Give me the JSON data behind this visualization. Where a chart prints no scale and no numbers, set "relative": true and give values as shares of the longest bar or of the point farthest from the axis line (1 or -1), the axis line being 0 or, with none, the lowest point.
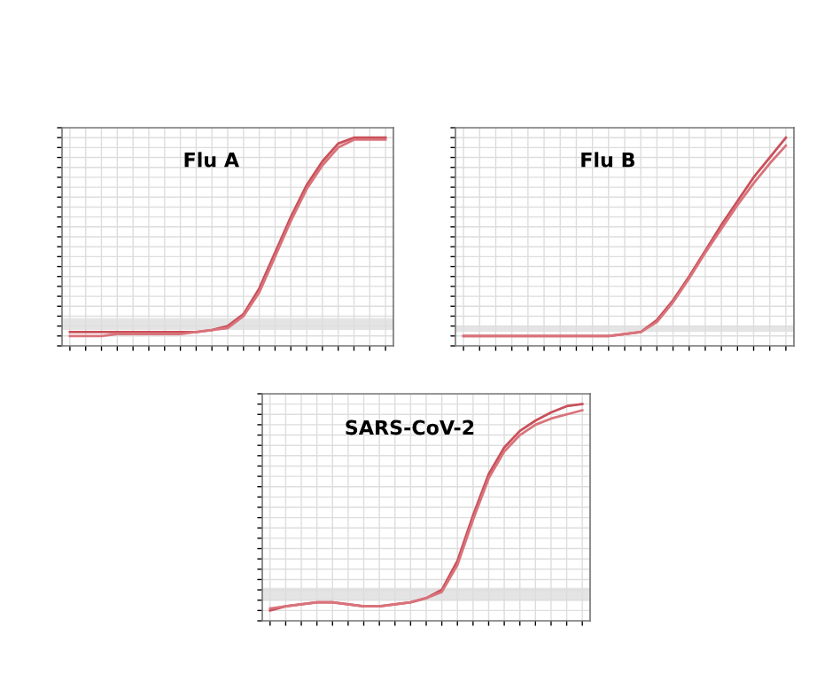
{
  "chart_data": [
    {
      "type": "line",
      "title": "Flu A",
      "relative": true,
      "grid": true,
      "tick_labels": false,
      "categories": [
        null,
        null,
        null,
        null,
        null,
        null,
        null,
        null,
        null,
        null,
        null,
        null,
        null,
        null,
        null,
        null,
        null,
        null,
        null,
        null,
        null
      ],
      "series": [
        {
          "color": "#c9505a",
          "values": [
            0.02,
            0.02,
            0.02,
            0.02,
            0.02,
            0.02,
            0.02,
            0.02,
            0.02,
            0.03,
            0.05,
            0.11,
            0.24,
            0.42,
            0.6,
            0.76,
            0.88,
            0.97,
            1,
            1,
            1
          ]
        },
        {
          "color": "#d9737b",
          "values": [
            0.0,
            0.0,
            0.0,
            0.01,
            0.01,
            0.01,
            0.01,
            0.01,
            0.02,
            0.03,
            0.04,
            0.1,
            0.22,
            0.4,
            0.58,
            0.74,
            0.86,
            0.95,
            0.99,
            0.99,
            0.99
          ]
        }
      ],
      "bands": [
        {
          "axis": "y",
          "from": 0.03,
          "to": 0.09,
          "color": "#d8d8d8"
        }
      ]
    },
    {
      "type": "line",
      "title": "Flu B",
      "relative": true,
      "grid": true,
      "tick_labels": false,
      "categories": [
        null,
        null,
        null,
        null,
        null,
        null,
        null,
        null,
        null,
        null,
        null,
        null,
        null,
        null,
        null,
        null,
        null,
        null,
        null,
        null,
        null
      ],
      "series": [
        {
          "color": "#c9505a",
          "values": [
            0.0,
            0.0,
            0.0,
            0.0,
            0.0,
            0.0,
            0.0,
            0.0,
            0.0,
            0.0,
            0.01,
            0.02,
            0.08,
            0.18,
            0.3,
            0.43,
            0.56,
            0.68,
            0.8,
            0.9,
            1.0
          ]
        },
        {
          "color": "#d9737b",
          "values": [
            0.0,
            0.0,
            0.0,
            0.0,
            0.0,
            0.0,
            0.0,
            0.0,
            0.0,
            0.0,
            0.01,
            0.02,
            0.07,
            0.17,
            0.29,
            0.42,
            0.54,
            0.66,
            0.77,
            0.87,
            0.96
          ]
        }
      ],
      "bands": [
        {
          "axis": "y",
          "from": 0.02,
          "to": 0.05,
          "color": "#d8d8d8"
        }
      ]
    },
    {
      "type": "line",
      "title": "SARS-CoV-2",
      "relative": true,
      "grid": true,
      "tick_labels": false,
      "categories": [
        null,
        null,
        null,
        null,
        null,
        null,
        null,
        null,
        null,
        null,
        null,
        null,
        null,
        null,
        null,
        null,
        null,
        null,
        null,
        null,
        null
      ],
      "series": [
        {
          "color": "#c9505a",
          "values": [
            0.0,
            0.02,
            0.03,
            0.04,
            0.04,
            0.03,
            0.02,
            0.02,
            0.03,
            0.04,
            0.06,
            0.1,
            0.24,
            0.46,
            0.66,
            0.79,
            0.87,
            0.92,
            0.96,
            0.99,
            1.0
          ]
        },
        {
          "color": "#d9737b",
          "values": [
            0.01,
            0.02,
            0.03,
            0.04,
            0.04,
            0.03,
            0.02,
            0.02,
            0.03,
            0.04,
            0.06,
            0.09,
            0.22,
            0.44,
            0.64,
            0.77,
            0.85,
            0.9,
            0.93,
            0.95,
            0.97
          ]
        }
      ],
      "bands": [
        {
          "axis": "y",
          "from": 0.05,
          "to": 0.11,
          "color": "#d8d8d8"
        }
      ]
    }
  ]
}
